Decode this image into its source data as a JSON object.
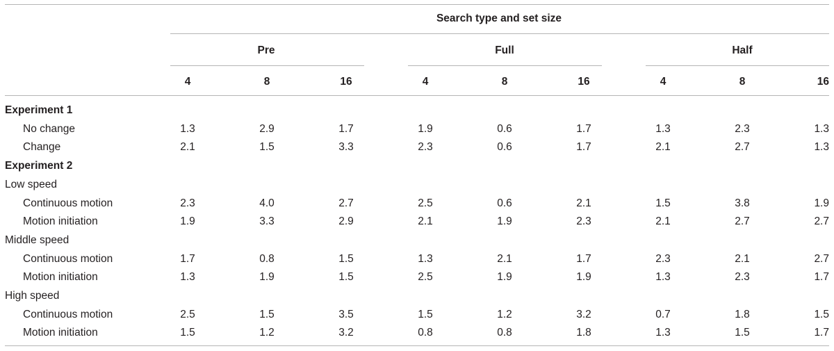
{
  "table": {
    "spanner": "Search type and set size",
    "groups": [
      "Pre",
      "Full",
      "Half"
    ],
    "set_sizes": [
      "4",
      "8",
      "16",
      "4",
      "8",
      "16",
      "4",
      "8",
      "16"
    ],
    "rows": [
      {
        "label": "Experiment 1",
        "kind": "section",
        "values": []
      },
      {
        "label": "No change",
        "kind": "data",
        "values": [
          "1.3",
          "2.9",
          "1.7",
          "1.9",
          "0.6",
          "1.7",
          "1.3",
          "2.3",
          "1.3"
        ]
      },
      {
        "label": "Change",
        "kind": "data",
        "values": [
          "2.1",
          "1.5",
          "3.3",
          "2.3",
          "0.6",
          "1.7",
          "2.1",
          "2.7",
          "1.3"
        ]
      },
      {
        "label": "Experiment 2",
        "kind": "section",
        "values": []
      },
      {
        "label": "Low speed",
        "kind": "subsection",
        "values": []
      },
      {
        "label": "Continuous motion",
        "kind": "data",
        "values": [
          "2.3",
          "4.0",
          "2.7",
          "2.5",
          "0.6",
          "2.1",
          "1.5",
          "3.8",
          "1.9"
        ]
      },
      {
        "label": "Motion initiation",
        "kind": "data",
        "values": [
          "1.9",
          "3.3",
          "2.9",
          "2.1",
          "1.9",
          "2.3",
          "2.1",
          "2.7",
          "2.7"
        ]
      },
      {
        "label": "Middle speed",
        "kind": "subsection",
        "values": []
      },
      {
        "label": "Continuous motion",
        "kind": "data",
        "values": [
          "1.7",
          "0.8",
          "1.5",
          "1.3",
          "2.1",
          "1.7",
          "2.3",
          "2.1",
          "2.7"
        ]
      },
      {
        "label": "Motion initiation",
        "kind": "data",
        "values": [
          "1.3",
          "1.9",
          "1.5",
          "2.5",
          "1.9",
          "1.9",
          "1.3",
          "2.3",
          "1.7"
        ]
      },
      {
        "label": "High speed",
        "kind": "subsection",
        "values": []
      },
      {
        "label": "Continuous motion",
        "kind": "data",
        "values": [
          "2.5",
          "1.5",
          "3.5",
          "1.5",
          "1.2",
          "3.2",
          "0.7",
          "1.8",
          "1.5"
        ]
      },
      {
        "label": "Motion initiation",
        "kind": "data",
        "values": [
          "1.5",
          "1.2",
          "3.2",
          "0.8",
          "0.8",
          "1.8",
          "1.3",
          "1.5",
          "1.7"
        ]
      }
    ]
  }
}
